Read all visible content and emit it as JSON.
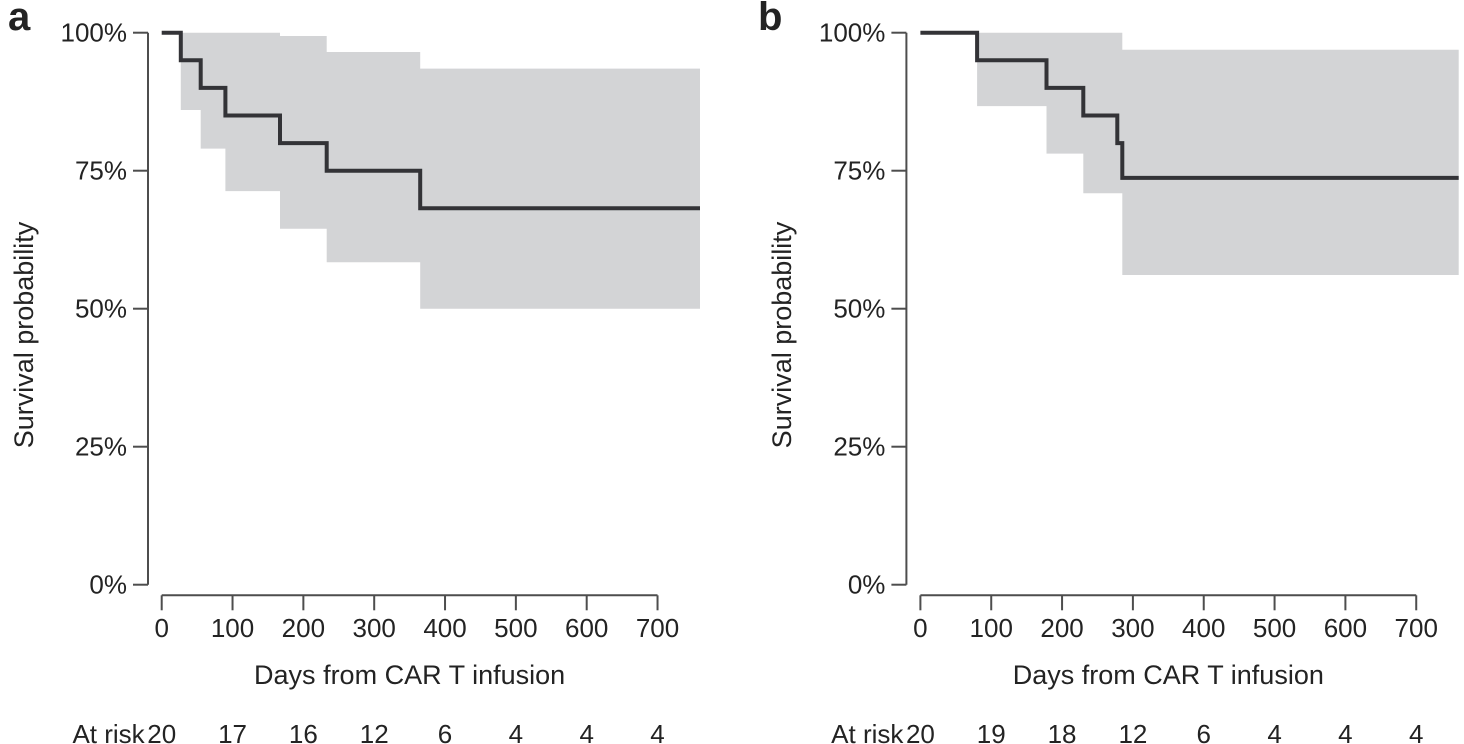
{
  "figure_title": "",
  "chart_data": [
    {
      "panel_label": "a",
      "type": "line",
      "subtype": "kaplan-meier-step-with-ci-band",
      "title": "",
      "xlabel": "Days from CAR T infusion",
      "ylabel": "Survival probability",
      "xlim": [
        0,
        760
      ],
      "ylim": [
        0,
        100
      ],
      "xticks": [
        0,
        100,
        200,
        300,
        400,
        500,
        600,
        700
      ],
      "yticks": [
        {
          "value": 0,
          "label": "0%"
        },
        {
          "value": 25,
          "label": "25%"
        },
        {
          "value": 50,
          "label": "50%"
        },
        {
          "value": 75,
          "label": "75%"
        },
        {
          "value": 100,
          "label": "100%"
        }
      ],
      "grid": false,
      "legend": "none",
      "survival_steps": [
        [
          0,
          100
        ],
        [
          27,
          95
        ],
        [
          55,
          90
        ],
        [
          90,
          85
        ],
        [
          167,
          80
        ],
        [
          233,
          75
        ],
        [
          365,
          68.2
        ]
      ],
      "ci_upper_steps": [
        [
          27,
          100
        ],
        [
          167,
          99.4
        ],
        [
          233,
          96.5
        ],
        [
          365,
          93.5
        ]
      ],
      "ci_lower_steps": [
        [
          27,
          86
        ],
        [
          55,
          79
        ],
        [
          90,
          71.3
        ],
        [
          167,
          64.5
        ],
        [
          233,
          58.4
        ],
        [
          365,
          50
        ]
      ],
      "at_risk": {
        "label": "At risk",
        "times": [
          0,
          100,
          200,
          300,
          400,
          500,
          600,
          700
        ],
        "counts": [
          20,
          17,
          16,
          12,
          6,
          4,
          4,
          4
        ]
      },
      "colors": {
        "curve": "#333337",
        "ci_band": "#d3d4d6",
        "axis": "#4d4d4d",
        "text": "#232323"
      }
    },
    {
      "panel_label": "b",
      "type": "line",
      "subtype": "kaplan-meier-step-with-ci-band",
      "title": "",
      "xlabel": "Days from CAR T infusion",
      "ylabel": "Survival probability",
      "xlim": [
        0,
        760
      ],
      "ylim": [
        0,
        100
      ],
      "xticks": [
        0,
        100,
        200,
        300,
        400,
        500,
        600,
        700
      ],
      "yticks": [
        {
          "value": 0,
          "label": "0%"
        },
        {
          "value": 25,
          "label": "25%"
        },
        {
          "value": 50,
          "label": "50%"
        },
        {
          "value": 75,
          "label": "75%"
        },
        {
          "value": 100,
          "label": "100%"
        }
      ],
      "grid": false,
      "legend": "none",
      "survival_steps": [
        [
          0,
          100
        ],
        [
          80,
          95
        ],
        [
          178,
          90
        ],
        [
          230,
          85
        ],
        [
          278,
          80
        ],
        [
          285,
          73.7
        ]
      ],
      "ci_upper_steps": [
        [
          80,
          100
        ],
        [
          285,
          96.9
        ]
      ],
      "ci_lower_steps": [
        [
          80,
          86.7
        ],
        [
          178,
          78.1
        ],
        [
          230,
          70.9
        ],
        [
          285,
          56.1
        ]
      ],
      "at_risk": {
        "label": "At risk",
        "times": [
          0,
          100,
          200,
          300,
          400,
          500,
          600,
          700
        ],
        "counts": [
          20,
          19,
          18,
          12,
          6,
          4,
          4,
          4
        ]
      },
      "colors": {
        "curve": "#333337",
        "ci_band": "#d3d4d6",
        "axis": "#4d4d4d",
        "text": "#232323"
      }
    }
  ]
}
